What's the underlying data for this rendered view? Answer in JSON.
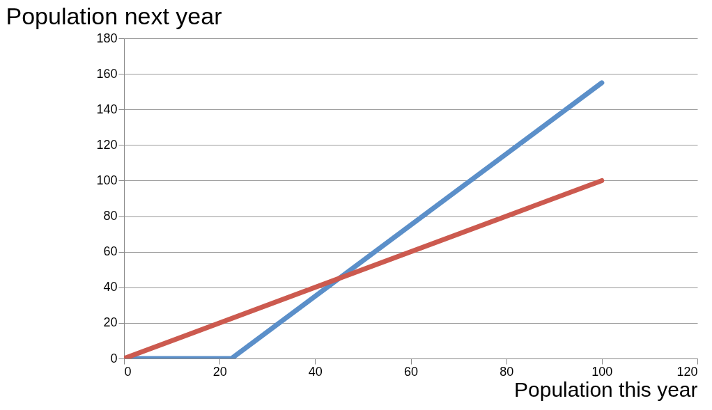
{
  "chart_data": {
    "type": "line",
    "xlabel": "Population this year",
    "ylabel": "Population next year",
    "series": [
      {
        "color": "#5b8fc9",
        "x": [
          0,
          22.5,
          100
        ],
        "values": [
          0,
          0,
          155
        ]
      },
      {
        "color": "#cc5a4f",
        "x": [
          0,
          100
        ],
        "values": [
          0,
          100
        ]
      }
    ],
    "xlim": [
      0,
      120
    ],
    "xticks": [
      0,
      20,
      40,
      60,
      80,
      100,
      120
    ],
    "ylim": [
      0,
      180
    ],
    "yticks": [
      0,
      20,
      40,
      60,
      80,
      100,
      120,
      140,
      160,
      180
    ],
    "grid": "y",
    "legend": false,
    "line_style": "solid",
    "marker": "none"
  }
}
